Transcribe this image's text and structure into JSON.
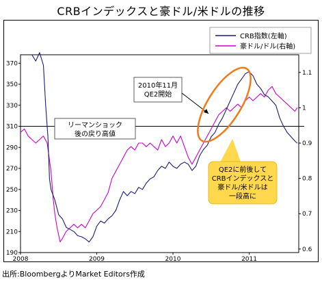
{
  "title": "CRBインデックスと豪ドル/米ドルの推移",
  "source": "出所:BloombergよりMarket Editors作成",
  "chart_data": {
    "type": "line",
    "x_ticks": [
      "2008",
      "2009",
      "2010",
      "2011"
    ],
    "y_left": {
      "ticks": [
        190,
        210,
        230,
        250,
        270,
        290,
        310,
        330,
        350,
        370
      ],
      "range": [
        190,
        378
      ]
    },
    "y_right": {
      "ticks": [
        0.6,
        0.7,
        0.8,
        0.9,
        1,
        1.1
      ],
      "range": [
        0.59,
        1.15
      ]
    },
    "reference_line": {
      "y_left": 310
    },
    "legend": {
      "position": "top-right"
    },
    "series": [
      {
        "name": "CRB指数(左軸)",
        "axis": "left",
        "color": "#1a1a7a",
        "points": [
          [
            2008.15,
            378
          ],
          [
            2008.2,
            372
          ],
          [
            2008.25,
            380
          ],
          [
            2008.3,
            368
          ],
          [
            2008.33,
            330
          ],
          [
            2008.36,
            300
          ],
          [
            2008.38,
            260
          ],
          [
            2008.4,
            250
          ],
          [
            2008.45,
            240
          ],
          [
            2008.5,
            226
          ],
          [
            2008.55,
            222
          ],
          [
            2008.6,
            214
          ],
          [
            2008.65,
            212
          ],
          [
            2008.7,
            210
          ],
          [
            2008.75,
            206
          ],
          [
            2008.8,
            205
          ],
          [
            2008.85,
            203
          ],
          [
            2008.9,
            200
          ],
          [
            2008.95,
            205
          ],
          [
            2009.0,
            215
          ],
          [
            2009.05,
            220
          ],
          [
            2009.1,
            218
          ],
          [
            2009.15,
            222
          ],
          [
            2009.2,
            225
          ],
          [
            2009.25,
            230
          ],
          [
            2009.3,
            240
          ],
          [
            2009.35,
            248
          ],
          [
            2009.4,
            244
          ],
          [
            2009.45,
            248
          ],
          [
            2009.5,
            246
          ],
          [
            2009.55,
            252
          ],
          [
            2009.6,
            250
          ],
          [
            2009.65,
            256
          ],
          [
            2009.7,
            260
          ],
          [
            2009.75,
            262
          ],
          [
            2009.8,
            268
          ],
          [
            2009.85,
            272
          ],
          [
            2009.9,
            270
          ],
          [
            2009.95,
            276
          ],
          [
            2010.0,
            272
          ],
          [
            2010.05,
            270
          ],
          [
            2010.1,
            274
          ],
          [
            2010.15,
            276
          ],
          [
            2010.2,
            274
          ],
          [
            2010.25,
            268
          ],
          [
            2010.3,
            272
          ],
          [
            2010.35,
            282
          ],
          [
            2010.4,
            288
          ],
          [
            2010.45,
            292
          ],
          [
            2010.5,
            300
          ],
          [
            2010.55,
            304
          ],
          [
            2010.6,
            312
          ],
          [
            2010.65,
            318
          ],
          [
            2010.7,
            326
          ],
          [
            2010.75,
            334
          ],
          [
            2010.8,
            342
          ],
          [
            2010.85,
            350
          ],
          [
            2010.9,
            355
          ],
          [
            2010.95,
            360
          ],
          [
            2011.0,
            362
          ],
          [
            2011.05,
            358
          ],
          [
            2011.1,
            350
          ],
          [
            2011.15,
            346
          ],
          [
            2011.2,
            340
          ],
          [
            2011.25,
            338
          ],
          [
            2011.3,
            334
          ],
          [
            2011.35,
            330
          ],
          [
            2011.4,
            318
          ],
          [
            2011.45,
            310
          ],
          [
            2011.5,
            304
          ],
          [
            2011.55,
            300
          ],
          [
            2011.6,
            296
          ],
          [
            2011.63,
            294
          ]
        ]
      },
      {
        "name": "豪ドル/ドル(右軸)",
        "axis": "right",
        "color": "#cc00cc",
        "points": [
          [
            2008.0,
            0.93
          ],
          [
            2008.05,
            0.94
          ],
          [
            2008.1,
            0.92
          ],
          [
            2008.15,
            0.91
          ],
          [
            2008.2,
            0.9
          ],
          [
            2008.25,
            0.91
          ],
          [
            2008.3,
            0.92
          ],
          [
            2008.35,
            0.9
          ],
          [
            2008.4,
            0.82
          ],
          [
            2008.43,
            0.74
          ],
          [
            2008.45,
            0.7
          ],
          [
            2008.48,
            0.66
          ],
          [
            2008.5,
            0.64
          ],
          [
            2008.52,
            0.62
          ],
          [
            2008.55,
            0.63
          ],
          [
            2008.6,
            0.65
          ],
          [
            2008.65,
            0.66
          ],
          [
            2008.7,
            0.67
          ],
          [
            2008.75,
            0.66
          ],
          [
            2008.8,
            0.67
          ],
          [
            2008.85,
            0.66
          ],
          [
            2008.9,
            0.68
          ],
          [
            2008.95,
            0.7
          ],
          [
            2009.0,
            0.71
          ],
          [
            2009.05,
            0.72
          ],
          [
            2009.1,
            0.74
          ],
          [
            2009.15,
            0.76
          ],
          [
            2009.2,
            0.8
          ],
          [
            2009.25,
            0.82
          ],
          [
            2009.3,
            0.84
          ],
          [
            2009.35,
            0.86
          ],
          [
            2009.4,
            0.88
          ],
          [
            2009.45,
            0.89
          ],
          [
            2009.5,
            0.88
          ],
          [
            2009.55,
            0.9
          ],
          [
            2009.6,
            0.9
          ],
          [
            2009.65,
            0.89
          ],
          [
            2009.7,
            0.9
          ],
          [
            2009.75,
            0.89
          ],
          [
            2009.8,
            0.88
          ],
          [
            2009.85,
            0.91
          ],
          [
            2009.9,
            0.89
          ],
          [
            2009.95,
            0.9
          ],
          [
            2010.0,
            0.92
          ],
          [
            2010.05,
            0.9
          ],
          [
            2010.1,
            0.92
          ],
          [
            2010.15,
            0.89
          ],
          [
            2010.2,
            0.86
          ],
          [
            2010.25,
            0.84
          ],
          [
            2010.3,
            0.86
          ],
          [
            2010.35,
            0.88
          ],
          [
            2010.4,
            0.9
          ],
          [
            2010.45,
            0.92
          ],
          [
            2010.5,
            0.94
          ],
          [
            2010.55,
            0.96
          ],
          [
            2010.6,
            0.98
          ],
          [
            2010.65,
            0.99
          ],
          [
            2010.7,
            1.0
          ],
          [
            2010.75,
            0.99
          ],
          [
            2010.8,
            1.0
          ],
          [
            2010.85,
            1.01
          ],
          [
            2010.9,
            1.0
          ],
          [
            2010.95,
            1.02
          ],
          [
            2011.0,
            1.03
          ],
          [
            2011.05,
            1.02
          ],
          [
            2011.1,
            1.03
          ],
          [
            2011.15,
            1.04
          ],
          [
            2011.2,
            1.03
          ],
          [
            2011.25,
            1.05
          ],
          [
            2011.3,
            1.06
          ],
          [
            2011.35,
            1.04
          ],
          [
            2011.4,
            1.03
          ],
          [
            2011.45,
            1.02
          ],
          [
            2011.5,
            1.01
          ],
          [
            2011.55,
            1.0
          ],
          [
            2011.6,
            0.99
          ],
          [
            2011.63,
            1.0
          ]
        ]
      }
    ],
    "annotations": {
      "qe2_label": [
        "2010年11月",
        "QE2開始"
      ],
      "lehman_label": [
        "リーマンショック",
        "後の戻り高値"
      ],
      "callout": [
        "QE2に前後して",
        "CRBインデックスと",
        "豪ドル/米ドルは",
        "一段高に"
      ]
    }
  }
}
